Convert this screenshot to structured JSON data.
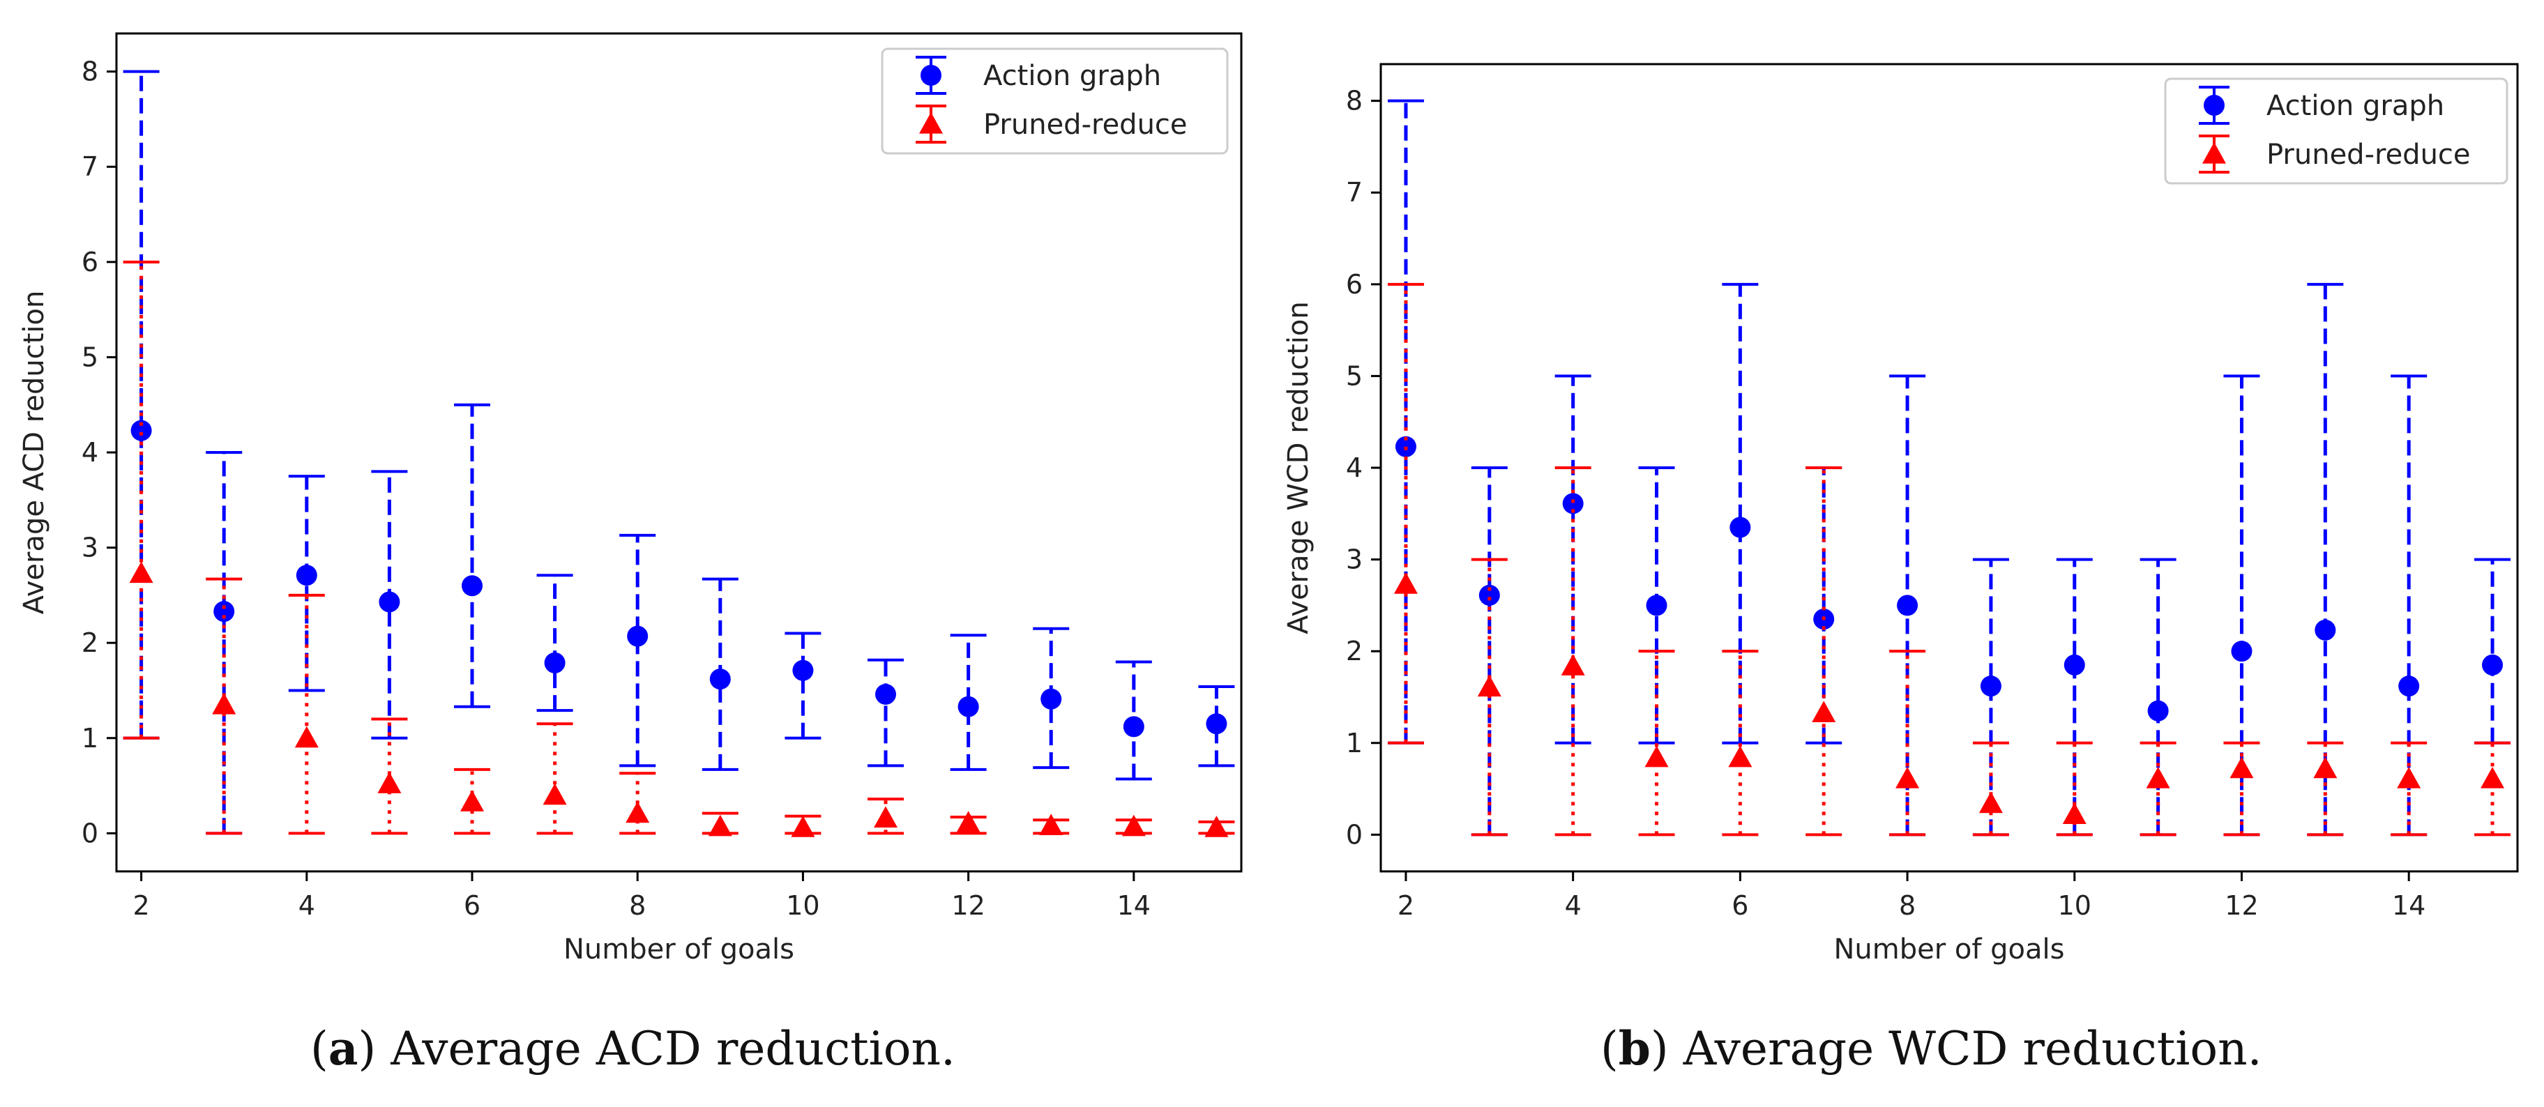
{
  "colors": {
    "action_graph": "#0000ff",
    "pruned_reduce": "#ff0000"
  },
  "chart_data": [
    {
      "type": "scatter",
      "subtype": "errorbar",
      "panel_id": "a",
      "caption_letter": "(a)",
      "caption_text": "Average ACD reduction.",
      "xlabel": "Number of goals",
      "ylabel": "Average ACD reduction",
      "xlim": [
        1.7,
        15.3
      ],
      "ylim": [
        -0.4,
        8.4
      ],
      "xticks": [
        2,
        4,
        6,
        8,
        10,
        12,
        14
      ],
      "yticks": [
        0,
        1,
        2,
        3,
        4,
        5,
        6,
        7,
        8
      ],
      "grid": false,
      "legend_position": "top-right",
      "series": [
        {
          "name": "Action graph",
          "marker": "circle",
          "linestyle": "dashed",
          "x": [
            2,
            3,
            4,
            5,
            6,
            7,
            8,
            9,
            10,
            11,
            12,
            13,
            14,
            15
          ],
          "y": [
            4.23,
            2.33,
            2.71,
            2.43,
            2.6,
            1.79,
            2.07,
            1.62,
            1.71,
            1.46,
            1.33,
            1.41,
            1.12,
            1.15
          ],
          "low": [
            1,
            0,
            1.5,
            1,
            1.33,
            1.29,
            0.71,
            0.67,
            1,
            0.71,
            0.67,
            0.69,
            0.57,
            0.71
          ],
          "high": [
            8,
            4,
            3.75,
            3.8,
            4.5,
            2.71,
            3.13,
            2.67,
            2.1,
            1.82,
            2.08,
            2.15,
            1.8,
            1.54
          ]
        },
        {
          "name": "Pruned-reduce",
          "marker": "triangle",
          "linestyle": "dotted",
          "x": [
            2,
            3,
            4,
            5,
            6,
            7,
            8,
            9,
            10,
            11,
            12,
            13,
            14,
            15
          ],
          "y": [
            2.73,
            1.35,
            1.0,
            0.52,
            0.33,
            0.4,
            0.21,
            0.07,
            0.06,
            0.16,
            0.11,
            0.08,
            0.07,
            0.06
          ],
          "low": [
            1,
            0,
            0,
            0,
            0,
            0,
            0,
            0,
            0,
            0,
            0,
            0,
            0,
            0
          ],
          "high": [
            6,
            2.67,
            2.5,
            1.2,
            0.67,
            1.15,
            0.63,
            0.21,
            0.18,
            0.36,
            0.17,
            0.14,
            0.14,
            0.12
          ]
        }
      ]
    },
    {
      "type": "scatter",
      "subtype": "errorbar",
      "panel_id": "b",
      "caption_letter": "(b)",
      "caption_text": "Average WCD reduction.",
      "xlabel": "Number of goals",
      "ylabel": "Average WCD reduction",
      "xlim": [
        1.7,
        15.3
      ],
      "ylim": [
        -0.4,
        8.4
      ],
      "xticks": [
        2,
        4,
        6,
        8,
        10,
        12,
        14
      ],
      "yticks": [
        0,
        1,
        2,
        3,
        4,
        5,
        6,
        7,
        8
      ],
      "grid": false,
      "legend_position": "top-right",
      "series": [
        {
          "name": "Action graph",
          "marker": "circle",
          "linestyle": "dashed",
          "x": [
            2,
            3,
            4,
            5,
            6,
            7,
            8,
            9,
            10,
            11,
            12,
            13,
            14,
            15
          ],
          "y": [
            4.23,
            2.61,
            3.61,
            2.5,
            3.35,
            2.35,
            2.5,
            1.62,
            1.85,
            1.35,
            2.0,
            2.23,
            1.62,
            1.85
          ],
          "low": [
            1,
            0,
            1,
            1,
            1,
            1,
            0,
            0,
            0,
            0,
            0,
            0,
            0,
            1
          ],
          "high": [
            8,
            4,
            5,
            4,
            6,
            4,
            5,
            3,
            3,
            3,
            5,
            6,
            5,
            3
          ]
        },
        {
          "name": "Pruned-reduce",
          "marker": "triangle",
          "linestyle": "dotted",
          "x": [
            2,
            3,
            4,
            5,
            6,
            7,
            8,
            9,
            10,
            11,
            12,
            13,
            14,
            15
          ],
          "y": [
            2.73,
            1.61,
            1.84,
            0.84,
            0.84,
            1.33,
            0.61,
            0.34,
            0.22,
            0.61,
            0.72,
            0.72,
            0.61,
            0.61
          ],
          "low": [
            1,
            0,
            0,
            0,
            0,
            0,
            0,
            0,
            0,
            0,
            0,
            0,
            0,
            0
          ],
          "high": [
            6,
            3,
            4,
            2,
            2,
            4,
            2,
            1,
            1,
            1,
            1,
            1,
            1,
            1
          ]
        }
      ]
    }
  ]
}
